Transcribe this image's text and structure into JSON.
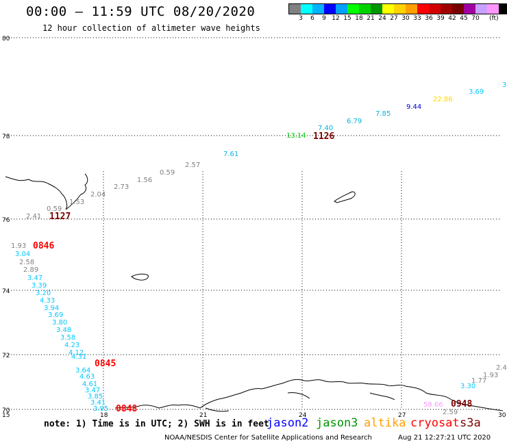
{
  "header": {
    "title": "00:00 – 11:59 UTC 08/20/2020",
    "subtitle": "12 hour collection of altimeter wave heights"
  },
  "colorbar": {
    "colors": [
      "#808080",
      "#00ffff",
      "#00b4ff",
      "#0000ff",
      "#00a0ff",
      "#00ff00",
      "#00d200",
      "#009600",
      "#ffff00",
      "#ffd200",
      "#ffa000",
      "#ff0000",
      "#d20000",
      "#a00000",
      "#780000",
      "#a000a0",
      "#c8a0ff",
      "#ff96ff",
      "#000000"
    ],
    "labels": [
      "3",
      "6",
      "9",
      "12",
      "15",
      "18",
      "21",
      "24",
      "27",
      "30",
      "33",
      "36",
      "39",
      "42",
      "45",
      "70"
    ],
    "unit": "(ft)"
  },
  "axes": {
    "lat_labels": [
      "80",
      "78",
      "76",
      "74",
      "72",
      "70"
    ],
    "lon_labels": [
      "15",
      "18",
      "21",
      "24",
      "27",
      "30"
    ]
  },
  "swh_labels": [
    {
      "text": "3",
      "color": "#00c8ff"
    },
    {
      "text": "3.69",
      "color": "#00c8ff"
    },
    {
      "text": "22.86",
      "color": "#ffd700"
    },
    {
      "text": "9.44",
      "color": "#0000c8"
    },
    {
      "text": "7.85",
      "color": "#00b4dc"
    },
    {
      "text": "6.79",
      "color": "#00b4dc"
    },
    {
      "text": "7.40",
      "color": "#00b4dc"
    },
    {
      "text": "13.14",
      "color": "#00c800"
    },
    {
      "text": "7.61",
      "color": "#00b4dc"
    },
    {
      "text": "2.57",
      "color": "#808080"
    },
    {
      "text": "0.59",
      "color": "#808080"
    },
    {
      "text": "1.56",
      "color": "#808080"
    },
    {
      "text": "2.73",
      "color": "#808080"
    },
    {
      "text": "2.04",
      "color": "#808080"
    },
    {
      "text": "1.53",
      "color": "#808080"
    },
    {
      "text": "0.59",
      "color": "#808080"
    },
    {
      "text": "2.41",
      "color": "#808080"
    },
    {
      "text": "1.93",
      "color": "#808080"
    },
    {
      "text": "3.04",
      "color": "#00c8ff"
    },
    {
      "text": "2.58",
      "color": "#808080"
    },
    {
      "text": "2.89",
      "color": "#808080"
    },
    {
      "text": "3.47",
      "color": "#00c8ff"
    },
    {
      "text": "3.39",
      "color": "#00c8ff"
    },
    {
      "text": "3.20",
      "color": "#00c8ff"
    },
    {
      "text": "4.33",
      "color": "#00c8ff"
    },
    {
      "text": "3.94",
      "color": "#00c8ff"
    },
    {
      "text": "3.69",
      "color": "#00c8ff"
    },
    {
      "text": "3.80",
      "color": "#00c8ff"
    },
    {
      "text": "3.48",
      "color": "#00c8ff"
    },
    {
      "text": "3.58",
      "color": "#00c8ff"
    },
    {
      "text": "4.23",
      "color": "#00c8ff"
    },
    {
      "text": "4.12",
      "color": "#00c8ff"
    },
    {
      "text": "4.31",
      "color": "#00c8ff"
    },
    {
      "text": "3.64",
      "color": "#00c8ff"
    },
    {
      "text": "4.63",
      "color": "#00c8ff"
    },
    {
      "text": "4.61",
      "color": "#00c8ff"
    },
    {
      "text": "3.47",
      "color": "#00c8ff"
    },
    {
      "text": "3.85",
      "color": "#00c8ff"
    },
    {
      "text": "3.41",
      "color": "#00c8ff"
    },
    {
      "text": "3.95",
      "color": "#00c8ff"
    },
    {
      "text": "2.4",
      "color": "#808080"
    },
    {
      "text": "1.93",
      "color": "#808080"
    },
    {
      "text": "1.77",
      "color": "#808080"
    },
    {
      "text": "3.30",
      "color": "#00c8ff"
    },
    {
      "text": "2.59",
      "color": "#808080"
    },
    {
      "text": "58.66",
      "color": "#ff96ff"
    }
  ],
  "time_labels": [
    {
      "text": "1126",
      "color": "#780000"
    },
    {
      "text": "1127",
      "color": "#780000"
    },
    {
      "text": "0846",
      "color": "#ff0000"
    },
    {
      "text": "0845",
      "color": "#ff0000"
    },
    {
      "text": "0848",
      "color": "#ff0000"
    },
    {
      "text": "0948",
      "color": "#780000"
    }
  ],
  "footer": {
    "note": "note: 1) Time is in UTC; 2) SWH is in feet",
    "satellites": [
      {
        "name": "jason2",
        "color": "#0000ff"
      },
      {
        "name": "jason3",
        "color": "#009600"
      },
      {
        "name": "altika",
        "color": "#ffa000"
      },
      {
        "name": "cryosat",
        "color": "#ff0000"
      },
      {
        "name": "s3a",
        "color": "#780000"
      }
    ],
    "credit": "NOAA/NESDIS Center for Satellite Applications and Research",
    "timestamp": "Aug 21 12:27:21 UTC 2020"
  }
}
